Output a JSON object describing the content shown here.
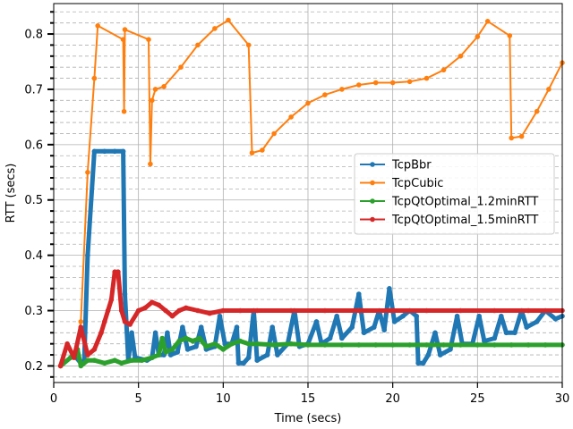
{
  "chart_data": {
    "type": "line",
    "xlabel": "Time (secs)",
    "ylabel": "RTT (secs)",
    "xlim": [
      0,
      30
    ],
    "ylim": [
      0.17,
      0.855
    ],
    "x_ticks": [
      0,
      5,
      10,
      15,
      20,
      25,
      30
    ],
    "x_tick_labels": [
      "0",
      "5",
      "10",
      "15",
      "20",
      "25",
      "30"
    ],
    "y_ticks": [
      0.2,
      0.3,
      0.4,
      0.5,
      0.6,
      0.7,
      0.8
    ],
    "y_tick_labels": [
      "0.2",
      "0.3",
      "0.4",
      "0.5",
      "0.6",
      "0.7",
      "0.8"
    ],
    "grid": true,
    "minor_grid": "dashed",
    "legend_position": "center-right",
    "series": [
      {
        "name": "TcpBbr",
        "color": "#1f77b4",
        "points": [
          [
            1.2,
            0.22
          ],
          [
            1.6,
            0.205
          ],
          [
            1.8,
            0.21
          ],
          [
            2.0,
            0.4
          ],
          [
            2.4,
            0.588
          ],
          [
            3.0,
            0.588
          ],
          [
            3.6,
            0.588
          ],
          [
            4.1,
            0.588
          ],
          [
            4.2,
            0.33
          ],
          [
            4.4,
            0.21
          ],
          [
            4.6,
            0.26
          ],
          [
            4.8,
            0.215
          ],
          [
            5.5,
            0.21
          ],
          [
            5.8,
            0.215
          ],
          [
            6.0,
            0.26
          ],
          [
            6.2,
            0.22
          ],
          [
            6.5,
            0.22
          ],
          [
            6.7,
            0.26
          ],
          [
            6.9,
            0.22
          ],
          [
            7.3,
            0.225
          ],
          [
            7.6,
            0.27
          ],
          [
            7.9,
            0.23
          ],
          [
            8.4,
            0.235
          ],
          [
            8.7,
            0.27
          ],
          [
            9.0,
            0.23
          ],
          [
            9.5,
            0.235
          ],
          [
            9.8,
            0.29
          ],
          [
            10.1,
            0.24
          ],
          [
            10.5,
            0.24
          ],
          [
            10.8,
            0.27
          ],
          [
            10.9,
            0.205
          ],
          [
            11.2,
            0.205
          ],
          [
            11.5,
            0.215
          ],
          [
            11.8,
            0.3
          ],
          [
            12.0,
            0.21
          ],
          [
            12.6,
            0.22
          ],
          [
            12.9,
            0.27
          ],
          [
            13.2,
            0.22
          ],
          [
            13.8,
            0.24
          ],
          [
            14.2,
            0.3
          ],
          [
            14.5,
            0.235
          ],
          [
            15.0,
            0.24
          ],
          [
            15.5,
            0.28
          ],
          [
            15.8,
            0.24
          ],
          [
            16.3,
            0.25
          ],
          [
            16.7,
            0.29
          ],
          [
            17.0,
            0.25
          ],
          [
            17.6,
            0.27
          ],
          [
            18.0,
            0.33
          ],
          [
            18.3,
            0.26
          ],
          [
            18.9,
            0.27
          ],
          [
            19.2,
            0.3
          ],
          [
            19.5,
            0.265
          ],
          [
            19.8,
            0.34
          ],
          [
            20.1,
            0.28
          ],
          [
            20.6,
            0.29
          ],
          [
            21.0,
            0.3
          ],
          [
            21.4,
            0.29
          ],
          [
            21.5,
            0.205
          ],
          [
            21.8,
            0.205
          ],
          [
            22.1,
            0.22
          ],
          [
            22.5,
            0.26
          ],
          [
            22.8,
            0.22
          ],
          [
            23.4,
            0.23
          ],
          [
            23.8,
            0.29
          ],
          [
            24.1,
            0.24
          ],
          [
            24.7,
            0.24
          ],
          [
            25.1,
            0.29
          ],
          [
            25.4,
            0.245
          ],
          [
            26.0,
            0.25
          ],
          [
            26.4,
            0.29
          ],
          [
            26.7,
            0.26
          ],
          [
            27.2,
            0.26
          ],
          [
            27.6,
            0.3
          ],
          [
            27.9,
            0.27
          ],
          [
            28.5,
            0.28
          ],
          [
            29.0,
            0.3
          ],
          [
            29.6,
            0.285
          ],
          [
            30.0,
            0.29
          ]
        ]
      },
      {
        "name": "TcpCubic",
        "color": "#ff7f0e",
        "points": [
          [
            0.4,
            0.2
          ],
          [
            1.2,
            0.22
          ],
          [
            1.6,
            0.28
          ],
          [
            2.0,
            0.55
          ],
          [
            2.4,
            0.72
          ],
          [
            2.6,
            0.815
          ],
          [
            4.1,
            0.79
          ],
          [
            4.15,
            0.66
          ],
          [
            4.2,
            0.808
          ],
          [
            5.6,
            0.79
          ],
          [
            5.7,
            0.565
          ],
          [
            5.8,
            0.68
          ],
          [
            6.0,
            0.7
          ],
          [
            6.5,
            0.705
          ],
          [
            7.5,
            0.74
          ],
          [
            8.5,
            0.78
          ],
          [
            9.5,
            0.81
          ],
          [
            10.3,
            0.825
          ],
          [
            11.5,
            0.78
          ],
          [
            11.7,
            0.585
          ],
          [
            12.3,
            0.59
          ],
          [
            13.0,
            0.62
          ],
          [
            14.0,
            0.65
          ],
          [
            15.0,
            0.675
          ],
          [
            16.0,
            0.69
          ],
          [
            17.0,
            0.7
          ],
          [
            18.0,
            0.708
          ],
          [
            19.0,
            0.712
          ],
          [
            20.0,
            0.712
          ],
          [
            21.0,
            0.714
          ],
          [
            22.0,
            0.72
          ],
          [
            23.0,
            0.735
          ],
          [
            24.0,
            0.76
          ],
          [
            25.0,
            0.795
          ],
          [
            25.6,
            0.823
          ],
          [
            26.9,
            0.797
          ],
          [
            27.0,
            0.612
          ],
          [
            27.6,
            0.615
          ],
          [
            28.5,
            0.66
          ],
          [
            29.2,
            0.7
          ],
          [
            30.0,
            0.748
          ]
        ]
      },
      {
        "name": "TcpQtOptimal_1.2minRTT",
        "color": "#2ca02c",
        "points": [
          [
            0.4,
            0.2
          ],
          [
            1.0,
            0.215
          ],
          [
            1.4,
            0.23
          ],
          [
            1.6,
            0.2
          ],
          [
            2.0,
            0.21
          ],
          [
            2.4,
            0.21
          ],
          [
            3.0,
            0.205
          ],
          [
            3.6,
            0.21
          ],
          [
            4.0,
            0.205
          ],
          [
            4.6,
            0.21
          ],
          [
            5.2,
            0.21
          ],
          [
            5.8,
            0.215
          ],
          [
            6.2,
            0.22
          ],
          [
            6.4,
            0.25
          ],
          [
            6.6,
            0.225
          ],
          [
            7.0,
            0.23
          ],
          [
            7.4,
            0.245
          ],
          [
            7.8,
            0.25
          ],
          [
            8.2,
            0.245
          ],
          [
            8.6,
            0.25
          ],
          [
            9.0,
            0.235
          ],
          [
            9.5,
            0.24
          ],
          [
            10.0,
            0.23
          ],
          [
            10.5,
            0.24
          ],
          [
            11.0,
            0.245
          ],
          [
            11.5,
            0.24
          ],
          [
            12.0,
            0.24
          ],
          [
            13.0,
            0.238
          ],
          [
            14.0,
            0.24
          ],
          [
            15.0,
            0.238
          ],
          [
            16.0,
            0.238
          ],
          [
            17.0,
            0.238
          ],
          [
            18.0,
            0.238
          ],
          [
            19.0,
            0.238
          ],
          [
            20.0,
            0.238
          ],
          [
            21.0,
            0.238
          ],
          [
            22.0,
            0.238
          ],
          [
            23.0,
            0.238
          ],
          [
            24.0,
            0.238
          ],
          [
            25.0,
            0.238
          ],
          [
            26.0,
            0.238
          ],
          [
            27.0,
            0.238
          ],
          [
            28.0,
            0.238
          ],
          [
            29.0,
            0.238
          ],
          [
            30.0,
            0.238
          ]
        ]
      },
      {
        "name": "TcpQtOptimal_1.5minRTT",
        "color": "#d62728",
        "points": [
          [
            0.4,
            0.2
          ],
          [
            0.8,
            0.24
          ],
          [
            1.2,
            0.215
          ],
          [
            1.6,
            0.27
          ],
          [
            2.0,
            0.22
          ],
          [
            2.4,
            0.23
          ],
          [
            2.8,
            0.26
          ],
          [
            3.0,
            0.28
          ],
          [
            3.2,
            0.3
          ],
          [
            3.4,
            0.32
          ],
          [
            3.6,
            0.37
          ],
          [
            3.8,
            0.37
          ],
          [
            4.0,
            0.3
          ],
          [
            4.2,
            0.28
          ],
          [
            4.5,
            0.275
          ],
          [
            5.0,
            0.3
          ],
          [
            5.4,
            0.305
          ],
          [
            5.8,
            0.315
          ],
          [
            6.2,
            0.31
          ],
          [
            6.6,
            0.3
          ],
          [
            7.0,
            0.29
          ],
          [
            7.4,
            0.3
          ],
          [
            7.8,
            0.305
          ],
          [
            8.5,
            0.3
          ],
          [
            9.2,
            0.295
          ],
          [
            10.0,
            0.3
          ],
          [
            11.0,
            0.3
          ],
          [
            12.0,
            0.3
          ],
          [
            14.0,
            0.3
          ],
          [
            16.0,
            0.3
          ],
          [
            18.0,
            0.3
          ],
          [
            20.0,
            0.3
          ],
          [
            22.0,
            0.3
          ],
          [
            24.0,
            0.3
          ],
          [
            26.0,
            0.3
          ],
          [
            28.0,
            0.3
          ],
          [
            30.0,
            0.3
          ]
        ]
      }
    ]
  }
}
